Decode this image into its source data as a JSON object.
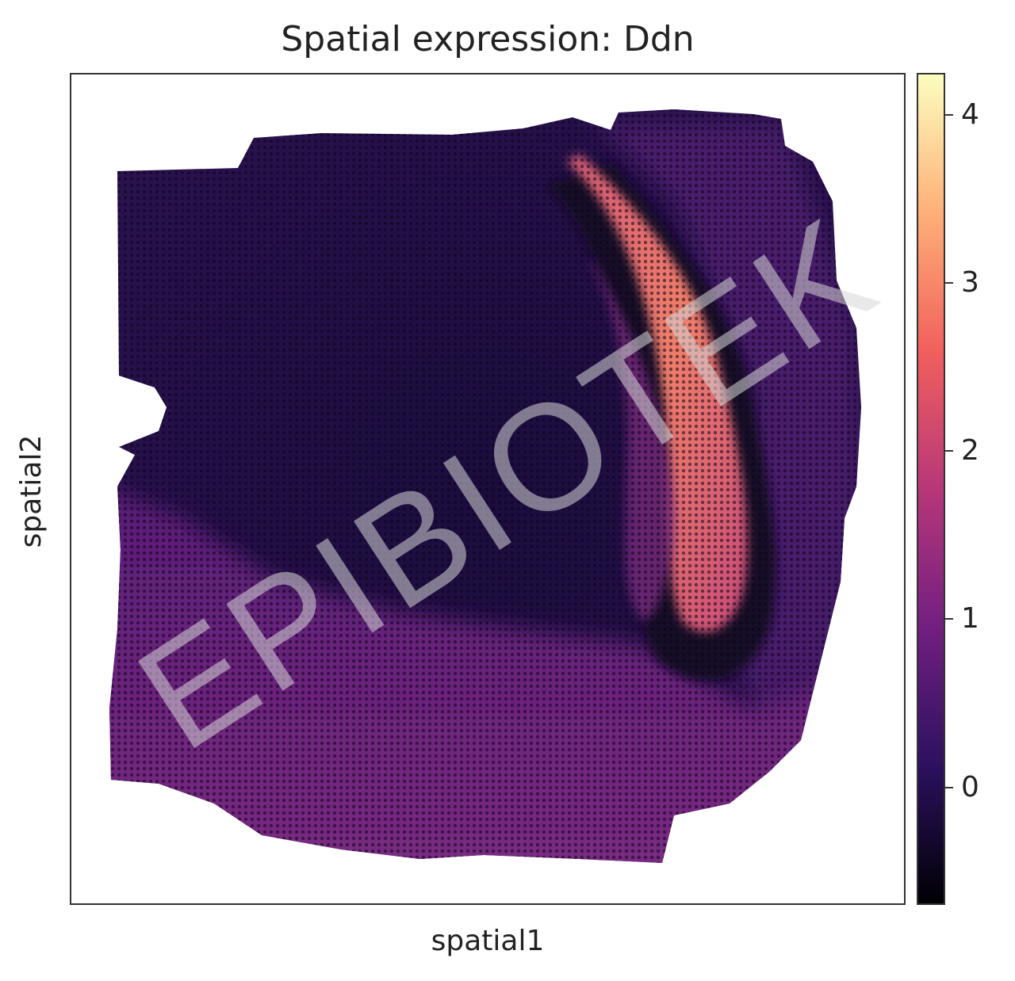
{
  "chart_data": {
    "type": "scatter",
    "title": "Spatial expression: Ddn",
    "xlabel": "spatial1",
    "ylabel": "spatial2",
    "colorbar": {
      "colormap": "magma",
      "range": [
        -0.7,
        4.25
      ],
      "ticks": [
        0,
        1,
        2,
        3,
        4
      ],
      "tick_labels": [
        "0",
        "1",
        "2",
        "3",
        "4"
      ]
    },
    "regions": [
      {
        "name_hint": "hippocampal band",
        "expression": 3.0
      },
      {
        "name_hint": "lower cortical band",
        "expression": 1.4
      },
      {
        "name_hint": "upper left tissue",
        "expression": 0.2
      },
      {
        "name_hint": "right edge tissue",
        "expression": 0.9
      }
    ],
    "grid": false,
    "axis_ticks": false
  },
  "colors": {
    "colormap_stops": [
      "#000004",
      "#2c115f",
      "#721f81",
      "#b73779",
      "#f1605d",
      "#feb078",
      "#fcfdbf"
    ]
  },
  "watermark": "EPIBIOTEK"
}
